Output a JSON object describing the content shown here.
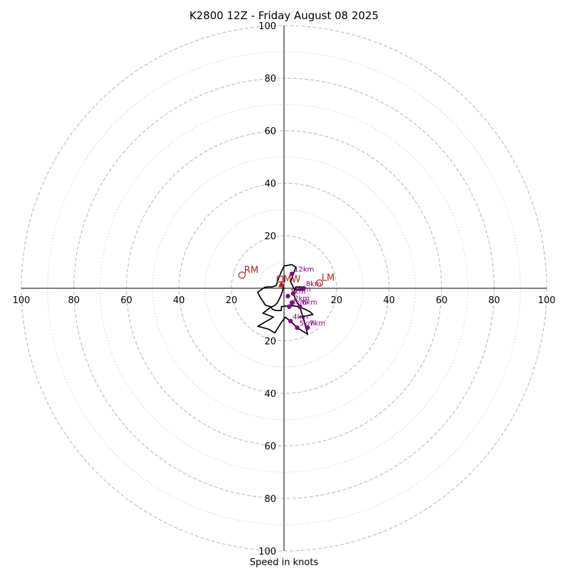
{
  "chart_data": {
    "type": "hodograph",
    "title": "K2800 12Z - Friday August 08 2025",
    "xlabel": "Speed in knots",
    "range": [
      -100,
      100
    ],
    "ticks": [
      100,
      80,
      60,
      40,
      20
    ],
    "rings_dashed": [
      20,
      40,
      60,
      80,
      100
    ],
    "rings_dotted": [
      10,
      30,
      50,
      70,
      90
    ],
    "colors": {
      "trace": "#000000",
      "heights": "#800080",
      "motion": "#b22222",
      "rings": "#bbbbbb"
    },
    "trace": [
      [
        -0.3,
        -0.7
      ],
      [
        -0.5,
        1.0
      ],
      [
        -1.5,
        3.5
      ],
      [
        -2.5,
        5.5
      ],
      [
        -3.5,
        6.5
      ],
      [
        -5.5,
        7.5
      ],
      [
        -8.0,
        9.5
      ],
      [
        -4.0,
        11.0
      ],
      [
        -10.0,
        14.5
      ],
      [
        -6.0,
        15.5
      ],
      [
        -3.5,
        17.0
      ],
      [
        -1.0,
        13.0
      ],
      [
        0.5,
        11.0
      ],
      [
        3.0,
        13.0
      ],
      [
        5.0,
        15.0
      ],
      [
        9.0,
        17.5
      ],
      [
        7.5,
        12.0
      ],
      [
        6.0,
        7.0
      ],
      [
        4.5,
        4.5
      ],
      [
        3.5,
        2.0
      ],
      [
        4.5,
        -0.5
      ],
      [
        6.5,
        -0.5
      ],
      [
        7.5,
        0.0
      ],
      [
        6.0,
        0.5
      ],
      [
        4.0,
        0.5
      ],
      [
        2.5,
        -2.5
      ],
      [
        4.5,
        -8.0
      ],
      [
        3.0,
        -9.0
      ],
      [
        0.0,
        -8.5
      ],
      [
        -2.0,
        -4.0
      ],
      [
        -3.0,
        -1.0
      ],
      [
        -4.5,
        -0.5
      ],
      [
        -6.0,
        -0.5
      ],
      [
        -7.5,
        -0.3
      ],
      [
        -10.0,
        1.5
      ],
      [
        -9.0,
        3.5
      ],
      [
        -7.0,
        6.5
      ],
      [
        -5.0,
        7.0
      ],
      [
        -4.5,
        8.0
      ],
      [
        -3.0,
        8.5
      ],
      [
        -1.0,
        8.5
      ],
      [
        -1.0,
        7.0
      ],
      [
        2.5,
        6.5
      ],
      [
        5.5,
        7.0
      ],
      [
        8.0,
        8.0
      ],
      [
        10.0,
        9.0
      ],
      [
        11.0,
        10.0
      ],
      [
        8.5,
        10.5
      ],
      [
        6.0,
        11.0
      ]
    ],
    "heights": [
      {
        "label": "1km",
        "u": 1.5,
        "v": 3.0
      },
      {
        "label": "2km",
        "u": 3.0,
        "v": 5.5
      },
      {
        "label": "3km",
        "u": 2.0,
        "v": 7.0
      },
      {
        "label": "4km",
        "u": 2.5,
        "v": 12.5
      },
      {
        "label": "5km",
        "u": 5.0,
        "v": 15.0
      },
      {
        "label": "6km",
        "u": 6.0,
        "v": 7.0
      },
      {
        "label": "7km",
        "u": 9.0,
        "v": 15.0
      },
      {
        "label": "8km",
        "u": 7.5,
        "v": 0.0
      },
      {
        "label": "9km",
        "u": 3.5,
        "v": 2.0
      },
      {
        "label": "12km",
        "u": 3.0,
        "v": -5.5
      }
    ],
    "motions": [
      {
        "label": "RM",
        "u": -16.0,
        "v": -5.0,
        "marker": "open-circle"
      },
      {
        "label": "LM",
        "u": 13.5,
        "v": -2.0,
        "marker": "open-circle"
      },
      {
        "label": "MW",
        "u": -1.0,
        "v": -1.5,
        "marker": "triangle"
      },
      {
        "label": "",
        "u": -1.5,
        "v": -3.5,
        "marker": "open-square"
      }
    ]
  }
}
